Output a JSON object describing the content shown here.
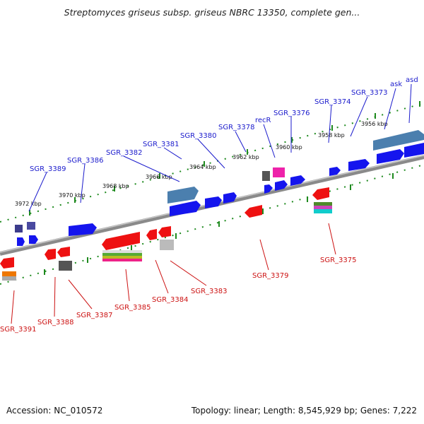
{
  "title": "Streptomyces griseus subsp. griseus NBRC 13350, complete gen...",
  "footer": {
    "accession": "Accession: NC_010572",
    "summary": "Topology: linear; Length: 8,545,929 bp; Genes: 7,222"
  },
  "colors": {
    "top_label": "#1a1acc",
    "bottom_label": "#cc1111",
    "backbone": "#888888",
    "ticks": "#1e8a1e"
  },
  "kbp_labels": [
    "3972 kbp",
    "3970 kbp",
    "3968 kbp",
    "3966 kbp",
    "3964 kbp",
    "3962 kbp",
    "3960 kbp",
    "3958 kbp",
    "3956 kbp"
  ],
  "top_labels": [
    "SGR_3389",
    "SGR_3386",
    "SGR_3382",
    "SGR_3381",
    "SGR_3380",
    "SGR_3378",
    "recR",
    "SGR_3376",
    "SGR_3374",
    "SGR_3373",
    "ask",
    "asd"
  ],
  "bottom_labels": [
    "SGR_3391",
    "SGR_3388",
    "SGR_3387",
    "SGR_3385",
    "SGR_3384",
    "SGR_3383",
    "SGR_3379",
    "SGR_3375"
  ]
}
